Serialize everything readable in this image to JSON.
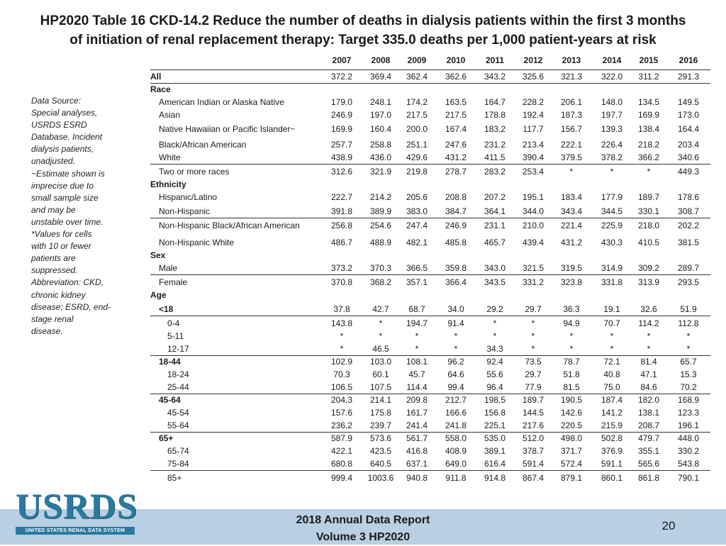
{
  "title": {
    "line1": "HP2020 Table 16 CKD-14.2 Reduce the number of deaths in dialysis patients within the first 3 months",
    "line2": "of initiation of renal replacement therapy: Target 335.0 deaths per 1,000 patient-years at risk"
  },
  "note": [
    "Data Source:",
    "Special analyses,",
    "USRDS ESRD",
    "Database. Incident",
    "dialysis patients,",
    "unadjusted.",
    "~Estimate shown is",
    "imprecise due to",
    "small sample size",
    "and may be",
    "unstable over time.",
    "*Values for cells",
    "with 10 or fewer",
    "patients are",
    "suppressed.",
    "Abbreviation: CKD,",
    "chronic kidney",
    "disease; ESRD, end-",
    "stage renal",
    "disease."
  ],
  "table": {
    "years": [
      "2007",
      "2008",
      "2009",
      "2010",
      "2011",
      "2012",
      "2013",
      "2014",
      "2015",
      "2016"
    ],
    "rows": [
      {
        "label": "All",
        "bold": true,
        "indent": 0,
        "values": [
          "372.2",
          "369.4",
          "362.4",
          "362.6",
          "343.2",
          "325.6",
          "321.3",
          "322.0",
          "311.2",
          "291.3"
        ]
      },
      {
        "label": "Race",
        "bold": true,
        "indent": 0,
        "values": []
      },
      {
        "label": "American Indian or Alaska Native",
        "bold": false,
        "indent": 1,
        "values": [
          "179.0",
          "248.1",
          "174.2",
          "163.5",
          "164.7",
          "228.2",
          "206.1",
          "148.0",
          "134.5",
          "149.5"
        ]
      },
      {
        "label": "Asian",
        "bold": false,
        "indent": 1,
        "values": [
          "246.9",
          "197.0",
          "217.5",
          "217.5",
          "178.8",
          "192.4",
          "187.3",
          "197.7",
          "169.9",
          "173.0"
        ]
      },
      {
        "label": "Native Hawaiian or Pacific Islander~",
        "bold": false,
        "indent": 1,
        "values": [
          "169.9",
          "160.4",
          "200.0",
          "167.4",
          "183.2",
          "117.7",
          "156.7",
          "139.3",
          "138.4",
          "164.4"
        ]
      },
      {
        "label": "Black/African American",
        "bold": false,
        "indent": 1,
        "values": [
          "257.7",
          "258.8",
          "251.1",
          "247.6",
          "231.2",
          "213.4",
          "222.1",
          "226.4",
          "218.2",
          "203.4"
        ]
      },
      {
        "label": "White",
        "bold": false,
        "indent": 1,
        "values": [
          "438.9",
          "436.0",
          "429.6",
          "431.2",
          "411.5",
          "390.4",
          "379.5",
          "378.2",
          "366.2",
          "340.6"
        ]
      },
      {
        "label": "Two or more races",
        "bold": false,
        "indent": 1,
        "values": [
          "312.6",
          "321.9",
          "219.8",
          "278.7",
          "283.2",
          "253.4",
          "*",
          "*",
          "*",
          "449.3"
        ]
      },
      {
        "label": "Ethnicity",
        "bold": true,
        "indent": 0,
        "values": []
      },
      {
        "label": "Hispanic/Latino",
        "bold": false,
        "indent": 1,
        "values": [
          "222.7",
          "214.2",
          "205.6",
          "208.8",
          "207.2",
          "195.1",
          "183.4",
          "177.9",
          "189.7",
          "178.6"
        ]
      },
      {
        "label": "Non-Hispanic",
        "bold": false,
        "indent": 1,
        "values": [
          "391.8",
          "389.9",
          "383.0",
          "384.7",
          "364.1",
          "344.0",
          "343.4",
          "344.5",
          "330.1",
          "308.7"
        ]
      },
      {
        "label": "Non-Hispanic Black/African American",
        "bold": false,
        "indent": 1,
        "values": [
          "256.8",
          "254.6",
          "247.4",
          "246.9",
          "231.1",
          "210.0",
          "221.4",
          "225.9",
          "218.0",
          "202.2"
        ]
      },
      {
        "label": "Non-Hispanic White",
        "bold": false,
        "indent": 1,
        "values": [
          "486.7",
          "488.9",
          "482.1",
          "485.8",
          "465.7",
          "439.4",
          "431.2",
          "430.3",
          "410.5",
          "381.5"
        ]
      },
      {
        "label": "Sex",
        "bold": true,
        "indent": 0,
        "values": []
      },
      {
        "label": "Male",
        "bold": false,
        "indent": 1,
        "values": [
          "373.2",
          "370.3",
          "366.5",
          "359.8",
          "343.0",
          "321.5",
          "319.5",
          "314.9",
          "309.2",
          "289.7"
        ]
      },
      {
        "label": "Female",
        "bold": false,
        "indent": 1,
        "values": [
          "370.8",
          "368.2",
          "357.1",
          "366.4",
          "343.5",
          "331.2",
          "323.8",
          "331.8",
          "313.9",
          "293.5"
        ]
      },
      {
        "label": "Age",
        "bold": true,
        "indent": 0,
        "values": []
      },
      {
        "label": "<18",
        "bold": true,
        "indent": 1,
        "values": [
          "37.8",
          "42.7",
          "68.7",
          "34.0",
          "29.2",
          "29.7",
          "36.3",
          "19.1",
          "32.6",
          "51.9"
        ]
      },
      {
        "label": "0-4",
        "bold": false,
        "indent": 2,
        "values": [
          "143.8",
          "*",
          "194.7",
          "91.4",
          "*",
          "*",
          "94.9",
          "70.7",
          "114.2",
          "112.8"
        ]
      },
      {
        "label": "5-11",
        "bold": false,
        "indent": 2,
        "values": [
          "*",
          "*",
          "*",
          "*",
          "*",
          "*",
          "*",
          "*",
          "*",
          "*"
        ]
      },
      {
        "label": "12-17",
        "bold": false,
        "indent": 2,
        "values": [
          "*",
          "46.5",
          "*",
          "*",
          "34.3",
          "*",
          "*",
          "*",
          "*",
          "*"
        ]
      },
      {
        "label": "18-44",
        "bold": true,
        "indent": 1,
        "values": [
          "102.9",
          "103.0",
          "108.1",
          "96.2",
          "92.4",
          "73.5",
          "78.7",
          "72.1",
          "81.4",
          "65.7"
        ]
      },
      {
        "label": "18-24",
        "bold": false,
        "indent": 2,
        "values": [
          "70.3",
          "60.1",
          "45.7",
          "64.6",
          "55.6",
          "29.7",
          "51.8",
          "40.8",
          "47.1",
          "15.3"
        ]
      },
      {
        "label": "25-44",
        "bold": false,
        "indent": 2,
        "values": [
          "106.5",
          "107.5",
          "114.4",
          "99.4",
          "96.4",
          "77.9",
          "81.5",
          "75.0",
          "84.6",
          "70.2"
        ]
      },
      {
        "label": "45-64",
        "bold": true,
        "indent": 1,
        "values": [
          "204.3",
          "214.1",
          "209.8",
          "212.7",
          "198.5",
          "189.7",
          "190.5",
          "187.4",
          "182.0",
          "168.9"
        ]
      },
      {
        "label": "45-54",
        "bold": false,
        "indent": 2,
        "values": [
          "157.6",
          "175.8",
          "161.7",
          "166.6",
          "156.8",
          "144.5",
          "142.6",
          "141.2",
          "138.1",
          "123.3"
        ]
      },
      {
        "label": "55-64",
        "bold": false,
        "indent": 2,
        "values": [
          "236.2",
          "239.7",
          "241.4",
          "241.8",
          "225.1",
          "217.6",
          "220.5",
          "215.9",
          "208.7",
          "196.1"
        ]
      },
      {
        "label": "65+",
        "bold": true,
        "indent": 1,
        "values": [
          "587.9",
          "573.6",
          "561.7",
          "558.0",
          "535.0",
          "512.0",
          "498.0",
          "502.8",
          "479.7",
          "448.0"
        ]
      },
      {
        "label": "65-74",
        "bold": false,
        "indent": 2,
        "values": [
          "422.1",
          "423.5",
          "416.8",
          "408.9",
          "389.1",
          "378.7",
          "371.7",
          "376.9",
          "355.1",
          "330.2"
        ]
      },
      {
        "label": "75-84",
        "bold": false,
        "indent": 2,
        "values": [
          "680.8",
          "640.5",
          "637.1",
          "649.0",
          "616.4",
          "591.4",
          "572.4",
          "591.1",
          "565.6",
          "543.8"
        ]
      },
      {
        "label": "85+",
        "bold": false,
        "indent": 2,
        "values": [
          "999.4",
          "1003.6",
          "940.8",
          "911.8",
          "914.8",
          "867.4",
          "879.1",
          "860.1",
          "861.8",
          "790.1"
        ]
      }
    ]
  },
  "footer": {
    "logo_text": "USRDS",
    "logo_subtext": "UNITED STATES RENAL DATA SYSTEM",
    "report_line1": "2018 Annual Data Report",
    "report_line2": "Volume 3 HP2020",
    "page_number": "20",
    "bar_color": "#b9cfe3",
    "logo_color": "#2b7a9e"
  }
}
